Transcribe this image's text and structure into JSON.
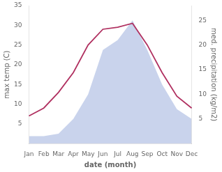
{
  "chart_data": {
    "type": "line",
    "xlabel": "date (month)",
    "ylabel": "max temp (C)",
    "y2label": "med. precipitation (kg/m2)",
    "categories": [
      "Jan",
      "Feb",
      "Mar",
      "Apr",
      "May",
      "Jun",
      "Jul",
      "Aug",
      "Sep",
      "Oct",
      "Nov",
      "Dec"
    ],
    "series": [
      {
        "type": "area",
        "axis": "y2",
        "color": "#9daedd",
        "values": [
          1.5,
          1.5,
          2,
          5,
          10,
          19,
          21,
          25,
          19,
          12,
          7,
          5
        ]
      },
      {
        "type": "line",
        "color": "#b03060",
        "values": [
          7,
          9,
          13,
          18,
          25,
          29,
          29.5,
          30.5,
          25,
          18,
          12,
          9
        ]
      }
    ],
    "ylim": [
      0,
      35
    ],
    "yticks": [
      5,
      10,
      15,
      20,
      25,
      30,
      35
    ],
    "y2lim": [
      0,
      28
    ],
    "y2ticks": [
      5,
      10,
      15,
      20,
      25
    ],
    "grid": false
  }
}
